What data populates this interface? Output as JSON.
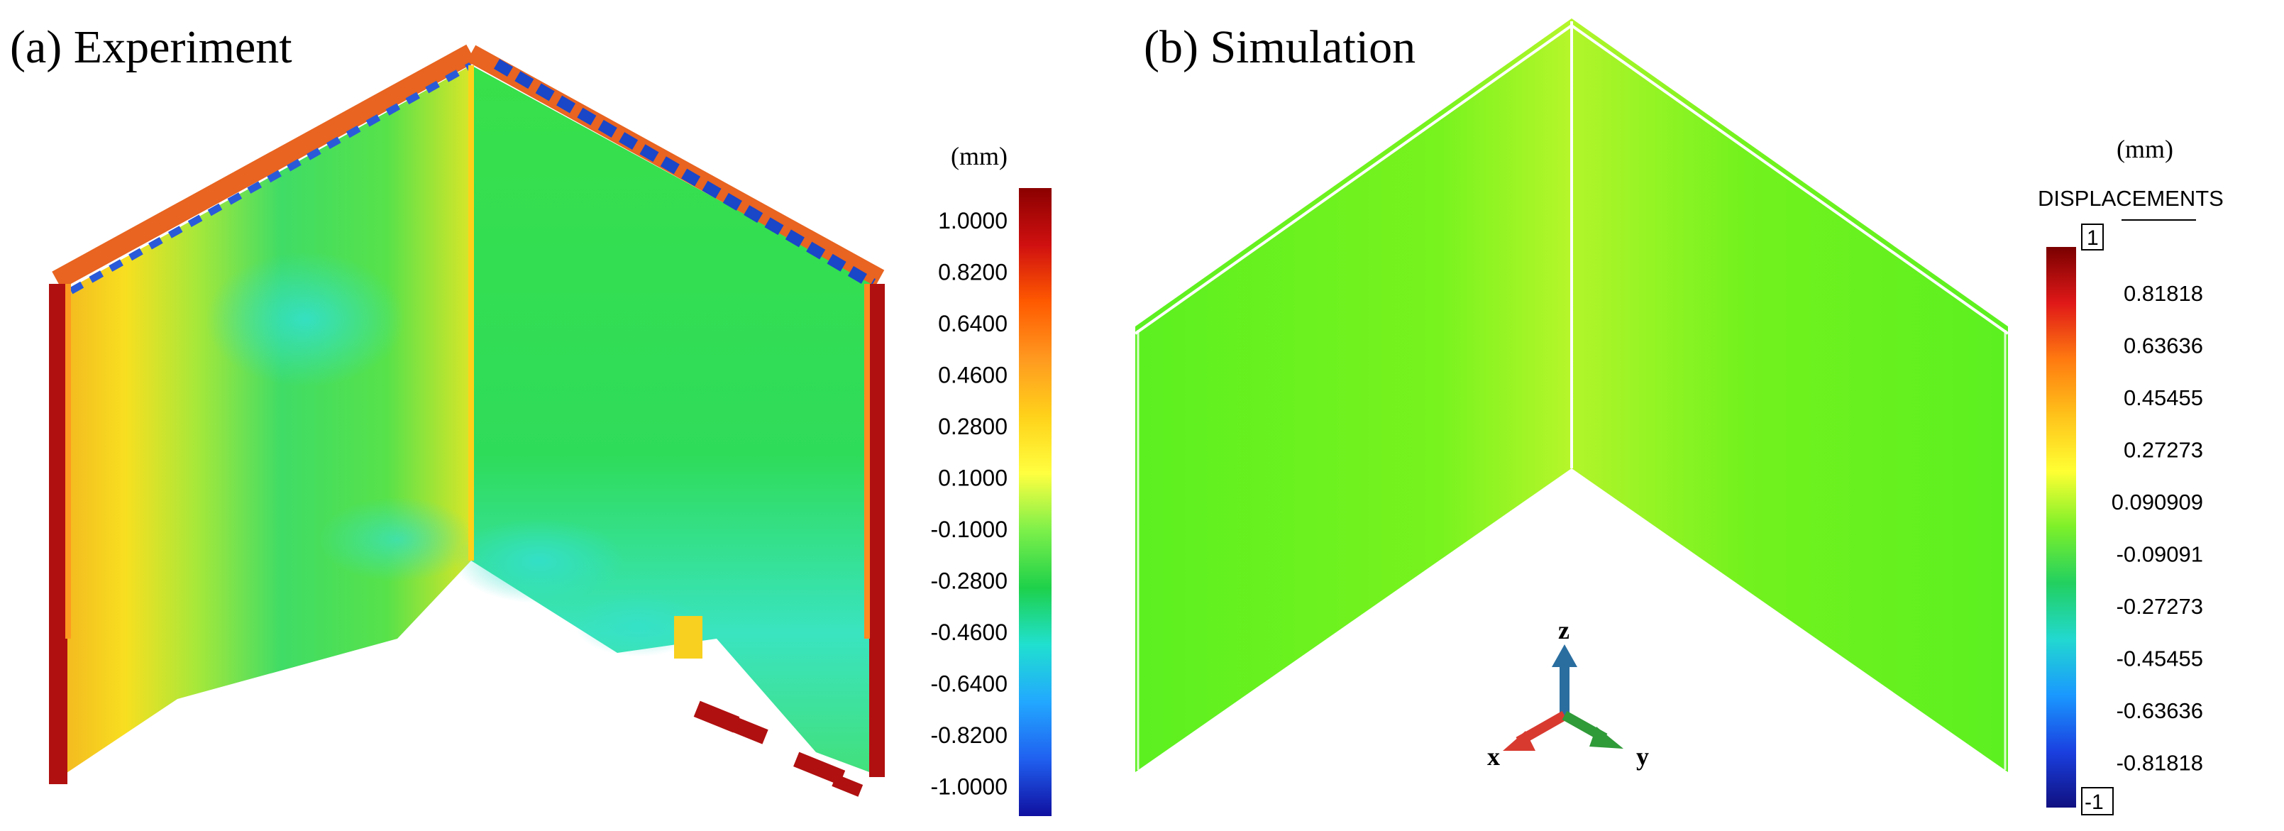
{
  "panel_a": {
    "title": "(a) Experiment",
    "unit": "(mm)",
    "colorbar_ticks": [
      "1.0000",
      "0.8200",
      "0.6400",
      "0.4600",
      "0.2800",
      "0.1000",
      "-0.1000",
      "-0.2800",
      "-0.4600",
      "-0.6400",
      "-0.8200",
      "-1.0000"
    ],
    "colorbar_stops": [
      "#8b0000",
      "#d01010",
      "#ff5a00",
      "#ff9a20",
      "#ffd21a",
      "#ffff40",
      "#7cf04a",
      "#1ed14a",
      "#20e0d0",
      "#22a8ff",
      "#2060f0",
      "#1010a0"
    ]
  },
  "panel_b": {
    "title": "(b) Simulation",
    "unit": "(mm)",
    "legend_title": "DISPLACEMENTS",
    "max_label": "1",
    "min_label": "-1",
    "colorbar_ticks": [
      "0.81818",
      "0.63636",
      "0.45455",
      "0.27273",
      "0.090909",
      "-0.09091",
      "-0.27273",
      "-0.45455",
      "-0.63636",
      "-0.81818"
    ],
    "colorbar_stops": [
      "#7a0000",
      "#e01818",
      "#ff7a10",
      "#ffc21a",
      "#ffff33",
      "#7cf02a",
      "#22d060",
      "#22d8d0",
      "#1a98ff",
      "#1a40e0",
      "#101080"
    ],
    "axes": {
      "z": "z",
      "x": "x",
      "y": "y"
    }
  }
}
